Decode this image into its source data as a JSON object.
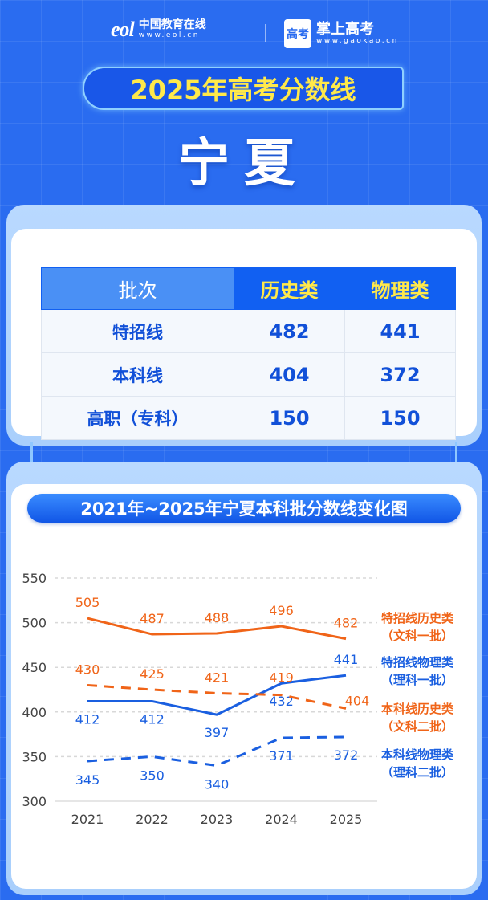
{
  "header": {
    "eol_logo": "eol",
    "eol_name": "中国教育在线",
    "eol_url": "www.eol.cn",
    "gk_logo": "高考",
    "gk_name": "掌上高考",
    "gk_url": "www.gaokao.cn"
  },
  "banner": "2025年高考分数线",
  "region": "宁夏",
  "table": {
    "headers": [
      "批次",
      "历史类",
      "物理类"
    ],
    "rows": [
      [
        "特招线",
        "482",
        "441"
      ],
      [
        "本科线",
        "404",
        "372"
      ],
      [
        "高职（专科）",
        "150",
        "150"
      ]
    ]
  },
  "chart_title": "2021年~2025年宁夏本科批分数线变化图",
  "chart_data": {
    "type": "line",
    "categories": [
      "2021",
      "2022",
      "2023",
      "2024",
      "2025"
    ],
    "ylim": [
      300,
      550
    ],
    "yticks": [
      "300",
      "350",
      "400",
      "450",
      "500",
      "550"
    ],
    "grid": true,
    "legend_position": "right",
    "series": [
      {
        "name": "特招线历史类",
        "sub": "（文科一批）",
        "color": "#f06418",
        "dash": false,
        "values": [
          505,
          487,
          488,
          496,
          482
        ]
      },
      {
        "name": "特招线物理类",
        "sub": "（理科一批）",
        "color": "#1a5fe0",
        "dash": false,
        "values": [
          412,
          412,
          397,
          432,
          441
        ]
      },
      {
        "name": "本科线历史类",
        "sub": "（文科二批）",
        "color": "#f06418",
        "dash": true,
        "values": [
          430,
          425,
          421,
          419,
          404
        ]
      },
      {
        "name": "本科线物理类",
        "sub": "（理科二批）",
        "color": "#1a5fe0",
        "dash": true,
        "values": [
          345,
          350,
          340,
          371,
          372
        ]
      }
    ]
  }
}
